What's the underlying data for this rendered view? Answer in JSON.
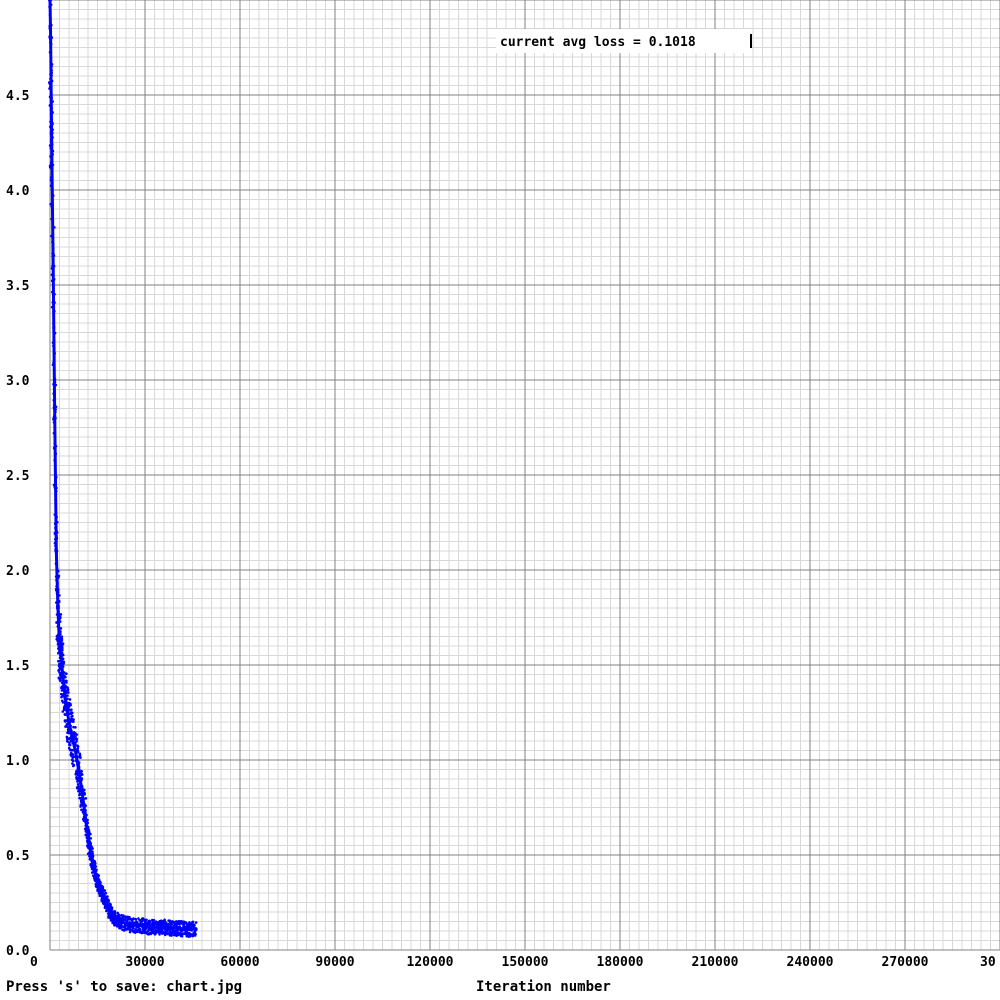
{
  "footer": {
    "save_hint": "Press 's' to save: chart.jpg",
    "x_axis_title": "Iteration number"
  },
  "overlay": {
    "current_loss_text": "current avg loss = 0.1018"
  },
  "colors": {
    "series": "#0000ff",
    "major_grid": "#808080",
    "minor_grid": "#d8d8d8",
    "background": "#ffffff",
    "text": "#000000"
  },
  "chart_data": {
    "type": "scatter",
    "title": "",
    "xlabel": "Iteration number",
    "ylabel": "",
    "xlim": [
      0,
      300000
    ],
    "ylim": [
      0,
      5
    ],
    "grid": true,
    "x_ticks": [
      "0",
      "30000",
      "60000",
      "90000",
      "120000",
      "150000",
      "180000",
      "210000",
      "240000",
      "270000",
      "30"
    ],
    "y_ticks": [
      "0.0",
      "0.5",
      "1.0",
      "1.5",
      "2.0",
      "2.5",
      "3.0",
      "3.5",
      "4.0",
      "4.5"
    ],
    "series": [
      {
        "name": "",
        "x": [
          0,
          200,
          500,
          1000,
          1500,
          2000,
          2500,
          3000,
          3500,
          4000,
          5000,
          6000,
          7000,
          8000,
          9000,
          10000,
          11000,
          12000,
          13000,
          14000,
          15000,
          16000,
          17000,
          18000,
          19000,
          20000,
          22000,
          24000,
          26000,
          28000,
          30000,
          32000,
          34000,
          36000,
          38000,
          40000,
          42000,
          44000,
          46000
        ],
        "y": [
          5.0,
          4.8,
          4.3,
          3.6,
          2.8,
          2.1,
          1.8,
          1.6,
          1.55,
          1.45,
          1.3,
          1.2,
          1.12,
          1.05,
          0.95,
          0.85,
          0.72,
          0.6,
          0.5,
          0.42,
          0.36,
          0.32,
          0.28,
          0.24,
          0.2,
          0.17,
          0.15,
          0.14,
          0.13,
          0.13,
          0.125,
          0.12,
          0.12,
          0.12,
          0.115,
          0.115,
          0.11,
          0.11,
          0.11
        ]
      }
    ]
  }
}
